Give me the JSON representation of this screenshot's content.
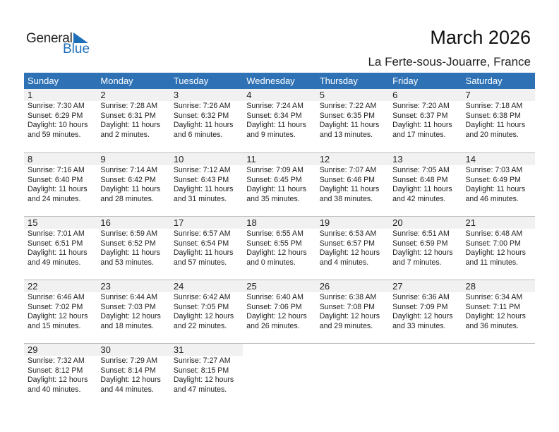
{
  "logo": {
    "text1": "General",
    "text2": "Blue",
    "color": "#1f6fb8"
  },
  "title": "March 2026",
  "location": "La Ferte-sous-Jouarre, France",
  "header_color": "#2e72b5",
  "weekdays": [
    "Sunday",
    "Monday",
    "Tuesday",
    "Wednesday",
    "Thursday",
    "Friday",
    "Saturday"
  ],
  "weeks": [
    [
      {
        "day": "1",
        "sunrise": "Sunrise: 7:30 AM",
        "sunset": "Sunset: 6:29 PM",
        "daylight": "Daylight: 10 hours",
        "minutes": "and 59 minutes."
      },
      {
        "day": "2",
        "sunrise": "Sunrise: 7:28 AM",
        "sunset": "Sunset: 6:31 PM",
        "daylight": "Daylight: 11 hours",
        "minutes": "and 2 minutes."
      },
      {
        "day": "3",
        "sunrise": "Sunrise: 7:26 AM",
        "sunset": "Sunset: 6:32 PM",
        "daylight": "Daylight: 11 hours",
        "minutes": "and 6 minutes."
      },
      {
        "day": "4",
        "sunrise": "Sunrise: 7:24 AM",
        "sunset": "Sunset: 6:34 PM",
        "daylight": "Daylight: 11 hours",
        "minutes": "and 9 minutes."
      },
      {
        "day": "5",
        "sunrise": "Sunrise: 7:22 AM",
        "sunset": "Sunset: 6:35 PM",
        "daylight": "Daylight: 11 hours",
        "minutes": "and 13 minutes."
      },
      {
        "day": "6",
        "sunrise": "Sunrise: 7:20 AM",
        "sunset": "Sunset: 6:37 PM",
        "daylight": "Daylight: 11 hours",
        "minutes": "and 17 minutes."
      },
      {
        "day": "7",
        "sunrise": "Sunrise: 7:18 AM",
        "sunset": "Sunset: 6:38 PM",
        "daylight": "Daylight: 11 hours",
        "minutes": "and 20 minutes."
      }
    ],
    [
      {
        "day": "8",
        "sunrise": "Sunrise: 7:16 AM",
        "sunset": "Sunset: 6:40 PM",
        "daylight": "Daylight: 11 hours",
        "minutes": "and 24 minutes."
      },
      {
        "day": "9",
        "sunrise": "Sunrise: 7:14 AM",
        "sunset": "Sunset: 6:42 PM",
        "daylight": "Daylight: 11 hours",
        "minutes": "and 28 minutes."
      },
      {
        "day": "10",
        "sunrise": "Sunrise: 7:12 AM",
        "sunset": "Sunset: 6:43 PM",
        "daylight": "Daylight: 11 hours",
        "minutes": "and 31 minutes."
      },
      {
        "day": "11",
        "sunrise": "Sunrise: 7:09 AM",
        "sunset": "Sunset: 6:45 PM",
        "daylight": "Daylight: 11 hours",
        "minutes": "and 35 minutes."
      },
      {
        "day": "12",
        "sunrise": "Sunrise: 7:07 AM",
        "sunset": "Sunset: 6:46 PM",
        "daylight": "Daylight: 11 hours",
        "minutes": "and 38 minutes."
      },
      {
        "day": "13",
        "sunrise": "Sunrise: 7:05 AM",
        "sunset": "Sunset: 6:48 PM",
        "daylight": "Daylight: 11 hours",
        "minutes": "and 42 minutes."
      },
      {
        "day": "14",
        "sunrise": "Sunrise: 7:03 AM",
        "sunset": "Sunset: 6:49 PM",
        "daylight": "Daylight: 11 hours",
        "minutes": "and 46 minutes."
      }
    ],
    [
      {
        "day": "15",
        "sunrise": "Sunrise: 7:01 AM",
        "sunset": "Sunset: 6:51 PM",
        "daylight": "Daylight: 11 hours",
        "minutes": "and 49 minutes."
      },
      {
        "day": "16",
        "sunrise": "Sunrise: 6:59 AM",
        "sunset": "Sunset: 6:52 PM",
        "daylight": "Daylight: 11 hours",
        "minutes": "and 53 minutes."
      },
      {
        "day": "17",
        "sunrise": "Sunrise: 6:57 AM",
        "sunset": "Sunset: 6:54 PM",
        "daylight": "Daylight: 11 hours",
        "minutes": "and 57 minutes."
      },
      {
        "day": "18",
        "sunrise": "Sunrise: 6:55 AM",
        "sunset": "Sunset: 6:55 PM",
        "daylight": "Daylight: 12 hours",
        "minutes": "and 0 minutes."
      },
      {
        "day": "19",
        "sunrise": "Sunrise: 6:53 AM",
        "sunset": "Sunset: 6:57 PM",
        "daylight": "Daylight: 12 hours",
        "minutes": "and 4 minutes."
      },
      {
        "day": "20",
        "sunrise": "Sunrise: 6:51 AM",
        "sunset": "Sunset: 6:59 PM",
        "daylight": "Daylight: 12 hours",
        "minutes": "and 7 minutes."
      },
      {
        "day": "21",
        "sunrise": "Sunrise: 6:48 AM",
        "sunset": "Sunset: 7:00 PM",
        "daylight": "Daylight: 12 hours",
        "minutes": "and 11 minutes."
      }
    ],
    [
      {
        "day": "22",
        "sunrise": "Sunrise: 6:46 AM",
        "sunset": "Sunset: 7:02 PM",
        "daylight": "Daylight: 12 hours",
        "minutes": "and 15 minutes."
      },
      {
        "day": "23",
        "sunrise": "Sunrise: 6:44 AM",
        "sunset": "Sunset: 7:03 PM",
        "daylight": "Daylight: 12 hours",
        "minutes": "and 18 minutes."
      },
      {
        "day": "24",
        "sunrise": "Sunrise: 6:42 AM",
        "sunset": "Sunset: 7:05 PM",
        "daylight": "Daylight: 12 hours",
        "minutes": "and 22 minutes."
      },
      {
        "day": "25",
        "sunrise": "Sunrise: 6:40 AM",
        "sunset": "Sunset: 7:06 PM",
        "daylight": "Daylight: 12 hours",
        "minutes": "and 26 minutes."
      },
      {
        "day": "26",
        "sunrise": "Sunrise: 6:38 AM",
        "sunset": "Sunset: 7:08 PM",
        "daylight": "Daylight: 12 hours",
        "minutes": "and 29 minutes."
      },
      {
        "day": "27",
        "sunrise": "Sunrise: 6:36 AM",
        "sunset": "Sunset: 7:09 PM",
        "daylight": "Daylight: 12 hours",
        "minutes": "and 33 minutes."
      },
      {
        "day": "28",
        "sunrise": "Sunrise: 6:34 AM",
        "sunset": "Sunset: 7:11 PM",
        "daylight": "Daylight: 12 hours",
        "minutes": "and 36 minutes."
      }
    ],
    [
      {
        "day": "29",
        "sunrise": "Sunrise: 7:32 AM",
        "sunset": "Sunset: 8:12 PM",
        "daylight": "Daylight: 12 hours",
        "minutes": "and 40 minutes."
      },
      {
        "day": "30",
        "sunrise": "Sunrise: 7:29 AM",
        "sunset": "Sunset: 8:14 PM",
        "daylight": "Daylight: 12 hours",
        "minutes": "and 44 minutes."
      },
      {
        "day": "31",
        "sunrise": "Sunrise: 7:27 AM",
        "sunset": "Sunset: 8:15 PM",
        "daylight": "Daylight: 12 hours",
        "minutes": "and 47 minutes."
      }
    ]
  ]
}
